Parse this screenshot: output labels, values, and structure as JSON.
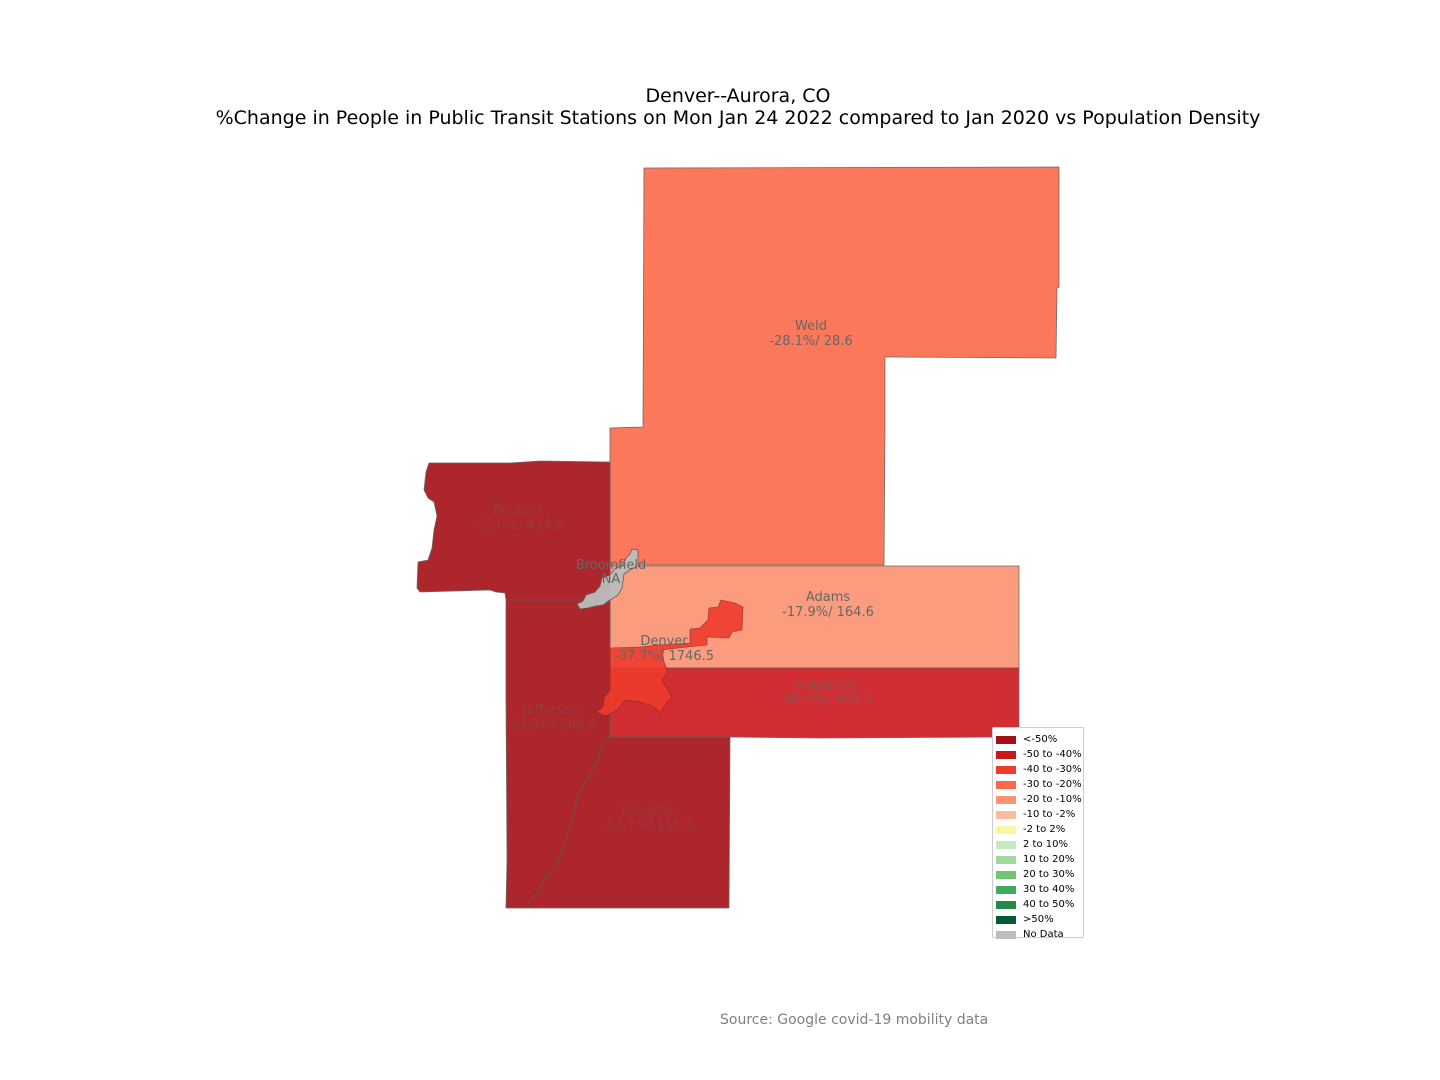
{
  "title": {
    "line1": "Denver--Aurora, CO",
    "line2": "%Change in People in Public Transit Stations on Mon Jan 24 2022 compared to Jan 2020 vs Population Density"
  },
  "source": "Source: Google covid-19 mobility data",
  "colors": {
    "lt_neg50": "#a50f15",
    "neg50_neg40": "#cb181d",
    "neg40_neg30": "#ef3b2c",
    "neg30_neg20": "#fb6a4a",
    "neg20_neg10": "#fc9272",
    "neg10_neg2": "#fcbba1",
    "neg2_2": "#f7f7a0",
    "p2_10": "#c7e9c0",
    "p10_20": "#a1d99b",
    "p20_30": "#74c476",
    "p30_40": "#41ab5d",
    "p40_50": "#238b45",
    "gt_50": "#005a32",
    "no_data": "#bdbdbd"
  },
  "legend": [
    {
      "label": "<-50%",
      "color": "#a50f15"
    },
    {
      "label": "-50 to -40%",
      "color": "#cb181d"
    },
    {
      "label": "-40 to -30%",
      "color": "#ef3b2c"
    },
    {
      "label": "-30 to -20%",
      "color": "#fb6a4a"
    },
    {
      "label": "-20 to -10%",
      "color": "#fc9272"
    },
    {
      "label": "-10 to -2%",
      "color": "#fcbba1"
    },
    {
      "label": "-2 to 2%",
      "color": "#f7f7a0"
    },
    {
      "label": "2 to 10%",
      "color": "#c7e9c0"
    },
    {
      "label": "10 to 20%",
      "color": "#a1d99b"
    },
    {
      "label": "20 to 30%",
      "color": "#74c476"
    },
    {
      "label": "30 to 40%",
      "color": "#41ab5d"
    },
    {
      "label": "40 to 50%",
      "color": "#238b45"
    },
    {
      "label": ">50%",
      "color": "#005a32"
    },
    {
      "label": "No Data",
      "color": "#bdbdbd"
    }
  ],
  "counties": {
    "weld": {
      "name": "Weld",
      "value": "-28.1%/ 28.6",
      "color": "#fb6a4a"
    },
    "boulder": {
      "name": "Boulder",
      "value": "-55.0%/ 434.6",
      "color": "#a50f15"
    },
    "broomfield": {
      "name": "Broomfield",
      "value": "NA",
      "color": "#bdbdbd"
    },
    "adams": {
      "name": "Adams",
      "value": "-17.9%/ 164.6",
      "color": "#fc9272"
    },
    "denver": {
      "name": "Denver",
      "value": "-37.7%/ 1746.5",
      "color": "#ef3b2c"
    },
    "arapahoe": {
      "name": "Arapahoe",
      "value": "-48.3%/ 308.1",
      "color": "#cb181d"
    },
    "jefferson": {
      "name": "Jefferson",
      "value": "-53.3%/ 306.2",
      "color": "#a50f15"
    },
    "douglas": {
      "name": "Douglas",
      "value": "-57.7%/ 155.6",
      "color": "#a50f15"
    }
  }
}
